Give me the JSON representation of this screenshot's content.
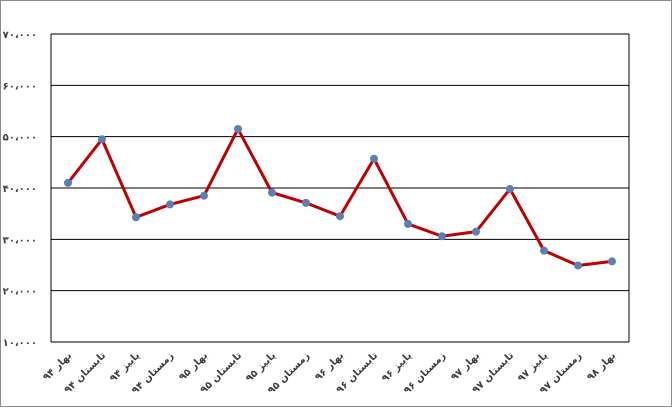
{
  "chart_data": {
    "type": "line",
    "title": "",
    "xlabel": "",
    "ylabel": "",
    "ylim": [
      10000,
      70000
    ],
    "yticks": [
      10000,
      20000,
      30000,
      40000,
      50000,
      60000,
      70000
    ],
    "ytick_labels": [
      "۱۰،۰۰۰",
      "۲۰،۰۰۰",
      "۳۰،۰۰۰",
      "۴۰،۰۰۰",
      "۵۰،۰۰۰",
      "۶۰،۰۰۰",
      "۷۰،۰۰۰"
    ],
    "grid": "horizontal",
    "legend": "none",
    "categories": [
      "بهار ۹۴",
      "تابستان ۹۴",
      "پاییز ۹۴",
      "زمستان ۹۴",
      "بهار ۹۵",
      "تابستان ۹۵",
      "پاییز ۹۵",
      "زمستان ۹۵",
      "بهار ۹۶",
      "تابستان ۹۶",
      "پاییز ۹۶",
      "زمستان ۹۶",
      "بهار ۹۷",
      "تابستان ۹۷",
      "پاییز ۹۷",
      "زمستان ۹۷",
      "بهار ۹۸"
    ],
    "series": [
      {
        "values": [
          41000,
          49500,
          34300,
          36800,
          38500,
          51500,
          39100,
          37100,
          34500,
          45700,
          33000,
          30600,
          31500,
          39800,
          27800,
          24900,
          25700
        ],
        "line_color": "#c00000",
        "marker_color": "#5b7fb4"
      }
    ]
  }
}
